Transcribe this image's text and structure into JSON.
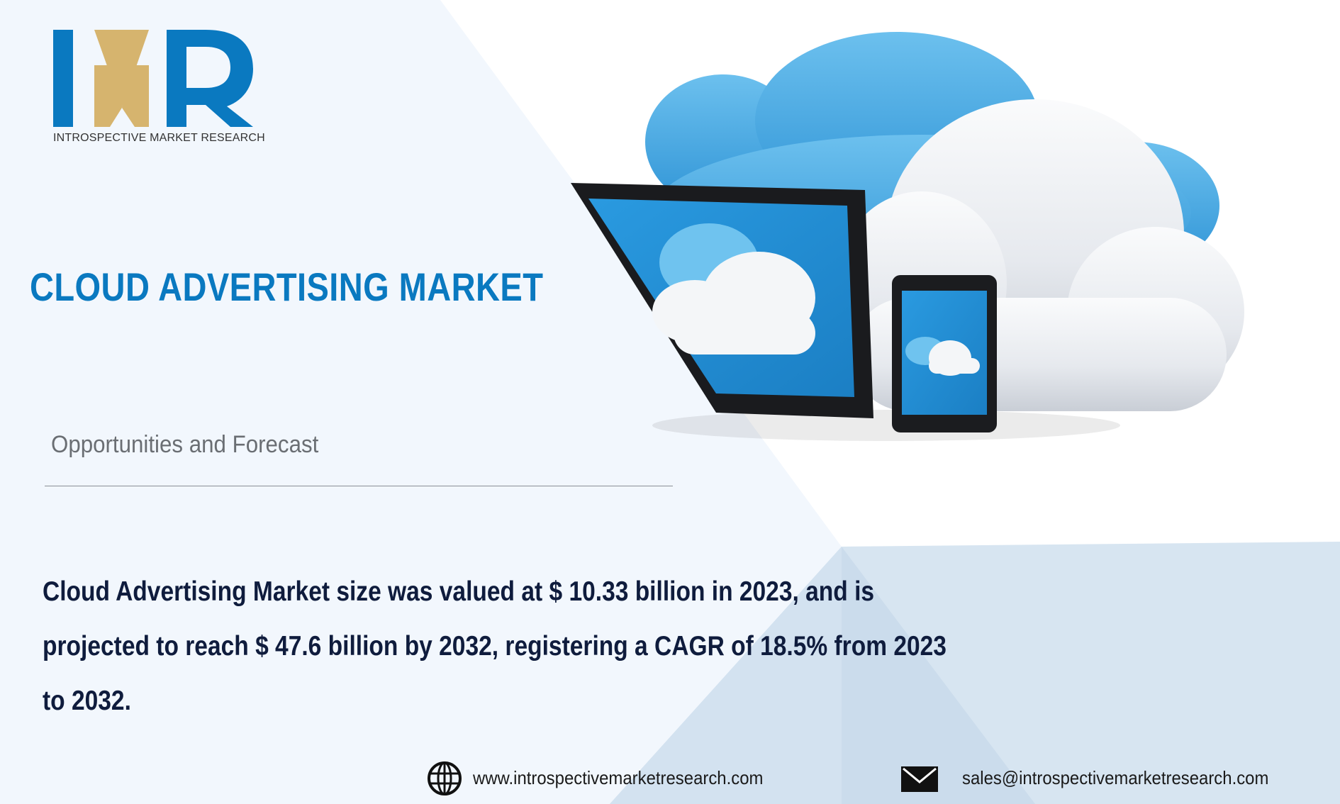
{
  "brand": {
    "logo_letters": "IMR",
    "name": "INTROSPECTIVE MARKET RESEARCH",
    "colors": {
      "blue": "#0a79c0",
      "gold": "#d6b46e"
    }
  },
  "hero": {
    "title": "CLOUD ADVERTISING MARKET",
    "subtitle": "Opportunities and Forecast",
    "illustration_icon": "cloud-devices-icon"
  },
  "summary": {
    "lines": [
      "Cloud Advertising Market size was valued at $ 10.33 billion in 2023, and is",
      "projected to reach $ 47.6 billion by 2032, registering a CAGR of 18.5% from 2023",
      "to 2032."
    ]
  },
  "footer": {
    "website": {
      "icon": "globe-icon",
      "text": "www.introspectivemarketresearch.com"
    },
    "email": {
      "icon": "envelope-icon",
      "text": "sales@introspectivemarketresearch.com"
    }
  }
}
